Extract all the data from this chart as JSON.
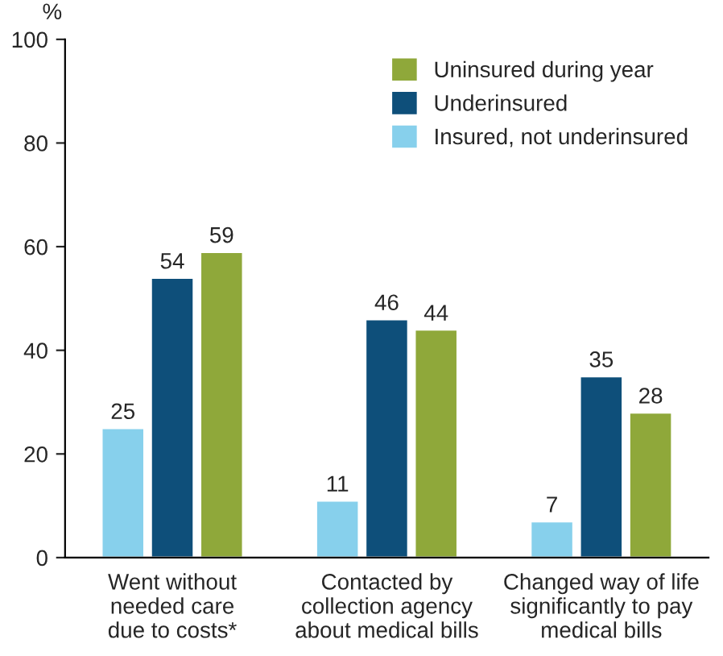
{
  "chart_data": {
    "type": "bar",
    "ylabel": "%",
    "categories": [
      "Went without\nneeded care\ndue to costs*",
      "Contacted by\ncollection agency\nabout medical bills",
      "Changed way of life\nsignificantly to pay\nmedical bills"
    ],
    "series": [
      {
        "name": "Insured, not underinsured",
        "color": "#87d0ec",
        "values": [
          25,
          11,
          7
        ]
      },
      {
        "name": "Underinsured",
        "color": "#0e4f7a",
        "values": [
          54,
          46,
          35
        ]
      },
      {
        "name": "Uninsured during year",
        "color": "#8fa83a",
        "values": [
          59,
          44,
          28
        ]
      }
    ],
    "ylim": [
      0,
      100
    ],
    "yticks": [
      0,
      20,
      40,
      60,
      80,
      100
    ],
    "data_labels": true,
    "grid": false,
    "legend": "top right"
  }
}
